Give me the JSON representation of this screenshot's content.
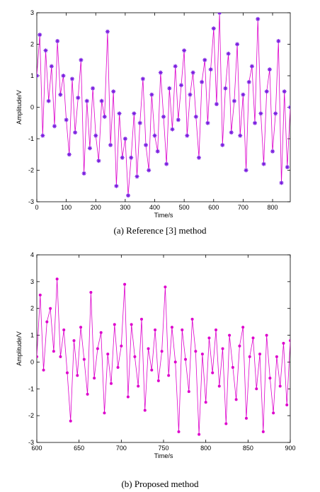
{
  "chart_data": [
    {
      "type": "line",
      "caption": "(a) Reference [3] method",
      "xlabel": "Time/s",
      "ylabel": "Amplitude/V",
      "xlim": [
        0,
        860
      ],
      "ylim": [
        -3,
        3
      ],
      "xticks": [
        0,
        100,
        200,
        300,
        400,
        500,
        600,
        700,
        800
      ],
      "yticks": [
        -3,
        -2,
        -1,
        0,
        1,
        2,
        3
      ],
      "series": [
        {
          "color": "#dd00cc",
          "marker": "asterisk",
          "marker_color": "#7a1fe0",
          "x": [
            0,
            10,
            20,
            30,
            40,
            50,
            60,
            70,
            80,
            90,
            100,
            110,
            120,
            130,
            140,
            150,
            160,
            170,
            180,
            190,
            200,
            210,
            220,
            230,
            240,
            250,
            260,
            270,
            280,
            290,
            300,
            310,
            320,
            330,
            340,
            350,
            360,
            370,
            380,
            390,
            400,
            410,
            420,
            430,
            440,
            450,
            460,
            470,
            480,
            490,
            500,
            510,
            520,
            530,
            540,
            550,
            560,
            570,
            580,
            590,
            600,
            610,
            620,
            630,
            640,
            650,
            660,
            670,
            680,
            690,
            700,
            710,
            720,
            730,
            740,
            750,
            760,
            770,
            780,
            790,
            800,
            810,
            820,
            830,
            840,
            850,
            860
          ],
          "y": [
            1.0,
            2.3,
            -0.9,
            1.8,
            0.2,
            1.3,
            -0.6,
            2.1,
            0.4,
            1.0,
            -0.4,
            -1.5,
            0.9,
            -0.8,
            0.3,
            1.5,
            -2.1,
            0.2,
            -1.3,
            0.6,
            -0.9,
            -1.7,
            0.2,
            -0.3,
            2.4,
            -1.2,
            0.5,
            -2.5,
            -0.2,
            -1.6,
            -1.0,
            -2.8,
            -1.6,
            -0.2,
            -2.2,
            -0.5,
            0.9,
            -1.2,
            -2.0,
            0.4,
            -0.9,
            -1.4,
            1.1,
            -0.3,
            -1.8,
            0.6,
            -0.7,
            1.3,
            -0.4,
            0.7,
            1.8,
            -0.9,
            0.4,
            1.1,
            -0.3,
            -1.6,
            0.8,
            1.5,
            -0.5,
            1.2,
            2.5,
            0.1,
            3.0,
            -1.2,
            0.6,
            1.7,
            -0.8,
            0.2,
            2.0,
            -0.9,
            0.4,
            -2.0,
            0.8,
            1.3,
            -0.5,
            2.8,
            -0.2,
            -1.8,
            0.5,
            1.2,
            -1.4,
            -0.2,
            2.1,
            -2.4,
            0.5,
            -1.9,
            0.0
          ]
        }
      ]
    },
    {
      "type": "line",
      "caption": "(b) Proposed method",
      "xlabel": "Time/s",
      "ylabel": "Amplitude/V",
      "xlim": [
        600,
        900
      ],
      "ylim": [
        -3,
        4
      ],
      "xticks": [
        600,
        650,
        700,
        750,
        800,
        850,
        900
      ],
      "yticks": [
        -3,
        -2,
        -1,
        0,
        1,
        2,
        3,
        4
      ],
      "series": [
        {
          "color": "#dd00cc",
          "marker": "dot",
          "marker_color": "#dd00cc",
          "x": [
            600,
            604,
            608,
            612,
            616,
            620,
            624,
            628,
            632,
            636,
            640,
            644,
            648,
            652,
            656,
            660,
            664,
            668,
            672,
            676,
            680,
            684,
            688,
            692,
            696,
            700,
            704,
            708,
            712,
            716,
            720,
            724,
            728,
            732,
            736,
            740,
            744,
            748,
            752,
            756,
            760,
            764,
            768,
            772,
            776,
            780,
            784,
            788,
            792,
            796,
            800,
            804,
            808,
            812,
            816,
            820,
            824,
            828,
            832,
            836,
            840,
            844,
            848,
            852,
            856,
            860,
            864,
            868,
            872,
            876,
            880,
            884,
            888,
            892,
            896,
            900
          ],
          "y": [
            0.2,
            2.5,
            -0.3,
            1.5,
            2.0,
            0.4,
            3.1,
            0.2,
            1.2,
            -0.4,
            -2.2,
            0.8,
            -0.5,
            1.3,
            0.1,
            -1.2,
            2.6,
            -0.6,
            0.5,
            1.1,
            -1.9,
            0.3,
            -0.8,
            1.4,
            -0.2,
            0.6,
            2.9,
            -1.3,
            1.4,
            0.2,
            -0.9,
            1.6,
            -1.8,
            0.5,
            -0.3,
            1.2,
            -0.7,
            0.4,
            2.8,
            -0.5,
            1.3,
            0.0,
            -2.6,
            1.2,
            0.1,
            -1.1,
            1.6,
            0.4,
            -2.7,
            0.3,
            -1.5,
            0.9,
            -0.4,
            1.2,
            -0.9,
            0.5,
            -2.3,
            1.0,
            -0.2,
            -1.4,
            0.6,
            1.3,
            -2.1,
            0.2,
            0.9,
            -1.0,
            0.3,
            -2.6,
            1.0,
            -0.6,
            -1.9,
            0.2,
            -0.9,
            0.7,
            -1.6,
            0.8
          ]
        }
      ]
    }
  ]
}
